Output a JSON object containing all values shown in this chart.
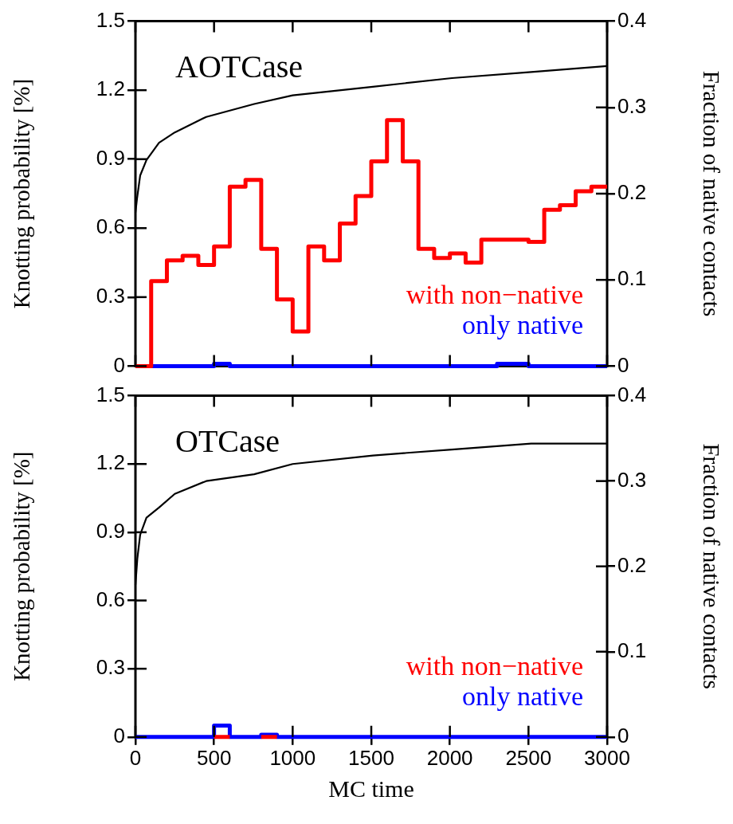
{
  "chart_data": [
    {
      "type": "step",
      "annotations": [
        "AOTCase"
      ],
      "ylabel": "Knotting probability [%]",
      "y2label": "Fraction of native contacts",
      "xlim": [
        0,
        3000
      ],
      "xticks": [
        0,
        500,
        1000,
        1500,
        2000,
        2500,
        3000
      ],
      "ylim": [
        0,
        1.5
      ],
      "yticks": [
        0,
        0.3,
        0.6,
        0.9,
        1.2,
        1.5
      ],
      "y2lim": [
        0,
        0.4
      ],
      "y2ticks": [
        0,
        0.1,
        0.2,
        0.3,
        0.4
      ],
      "tick_labels": "y",
      "legend": "bottom right",
      "marker": "none",
      "line_style": "solid",
      "series": [
        {
          "type": "line",
          "axis": "y2",
          "color": "#000000",
          "x": [
            0,
            10,
            30,
            70,
            150,
            250,
            450,
            755,
            1000,
            1510,
            2013,
            2517,
            3000
          ],
          "values": [
            0.178,
            0.194,
            0.221,
            0.239,
            0.259,
            0.271,
            0.289,
            0.304,
            0.314,
            0.324,
            0.334,
            0.341,
            0.348
          ]
        },
        {
          "type": "step",
          "name": "with non−native",
          "color": "#ff0000",
          "x": [
            0,
            100,
            200,
            300,
            400,
            500,
            600,
            700,
            800,
            900,
            1000,
            1100,
            1200,
            1300,
            1400,
            1500,
            1600,
            1700,
            1800,
            1900,
            2000,
            2100,
            2200,
            2300,
            2400,
            2500,
            2600,
            2700,
            2800,
            2900,
            3000
          ],
          "values": [
            0,
            0.37,
            0.46,
            0.48,
            0.44,
            0.52,
            0.78,
            0.81,
            0.51,
            0.29,
            0.15,
            0.52,
            0.46,
            0.62,
            0.74,
            0.89,
            1.07,
            0.89,
            0.51,
            0.47,
            0.49,
            0.45,
            0.55,
            0.55,
            0.55,
            0.54,
            0.68,
            0.7,
            0.76,
            0.78,
            0.78
          ]
        },
        {
          "type": "step",
          "name": "only native",
          "color": "#0000ff",
          "x": [
            0,
            100,
            200,
            300,
            400,
            500,
            600,
            700,
            800,
            900,
            1000,
            1100,
            1200,
            1300,
            1400,
            1500,
            1600,
            1700,
            1800,
            1900,
            2000,
            2100,
            2200,
            2300,
            2400,
            2500,
            2600,
            2700,
            2800,
            2900,
            3000
          ],
          "values": [
            0,
            0,
            0,
            0,
            0,
            0.01,
            0,
            0,
            0,
            0,
            0,
            0,
            0,
            0,
            0,
            0,
            0,
            0,
            0,
            0,
            0,
            0,
            0,
            0.01,
            0.01,
            0,
            0,
            0,
            0,
            0,
            0
          ]
        }
      ]
    },
    {
      "type": "step",
      "annotations": [
        "OTCase"
      ],
      "xlabel": "MC time",
      "ylabel": "Knotting probability [%]",
      "y2label": "Fraction of native contacts",
      "xlim": [
        0,
        3000
      ],
      "xticks": [
        0,
        500,
        1000,
        1500,
        2000,
        2500,
        3000
      ],
      "ylim": [
        0,
        1.5
      ],
      "yticks": [
        0,
        0.3,
        0.6,
        0.9,
        1.2,
        1.5
      ],
      "y2lim": [
        0,
        0.4
      ],
      "y2ticks": [
        0,
        0.1,
        0.2,
        0.3,
        0.4
      ],
      "legend": "bottom right",
      "marker": "none",
      "line_style": "solid",
      "series": [
        {
          "type": "line",
          "axis": "y2",
          "color": "#000000",
          "x": [
            0,
            12,
            30,
            70,
            150,
            250,
            450,
            755,
            1000,
            1510,
            2013,
            2517,
            3000
          ],
          "values": [
            0.178,
            0.209,
            0.237,
            0.257,
            0.269,
            0.285,
            0.3,
            0.308,
            0.32,
            0.33,
            0.337,
            0.344,
            0.344
          ]
        },
        {
          "type": "step",
          "name": "with non−native",
          "color": "#ff0000",
          "x": [
            500,
            600,
            700,
            800,
            900
          ],
          "values": [
            0,
            0,
            null,
            0,
            0
          ]
        },
        {
          "type": "step",
          "name": "only native",
          "color": "#0000ff",
          "x": [
            0,
            100,
            200,
            300,
            400,
            500,
            600,
            700,
            800,
            900,
            1000,
            1100,
            1200,
            1300,
            1400,
            1500,
            1600,
            1700,
            1800,
            1900,
            2000,
            2100,
            2200,
            2300,
            2400,
            2500,
            2600,
            2700,
            2800,
            2900,
            3000
          ],
          "values": [
            0,
            0,
            0,
            0,
            0,
            0.05,
            0,
            0,
            0.01,
            0,
            0,
            0,
            0,
            0,
            0,
            0,
            0,
            0,
            0,
            0,
            0,
            0,
            0,
            0,
            0,
            0,
            0,
            0,
            0,
            0,
            0
          ]
        }
      ]
    }
  ]
}
